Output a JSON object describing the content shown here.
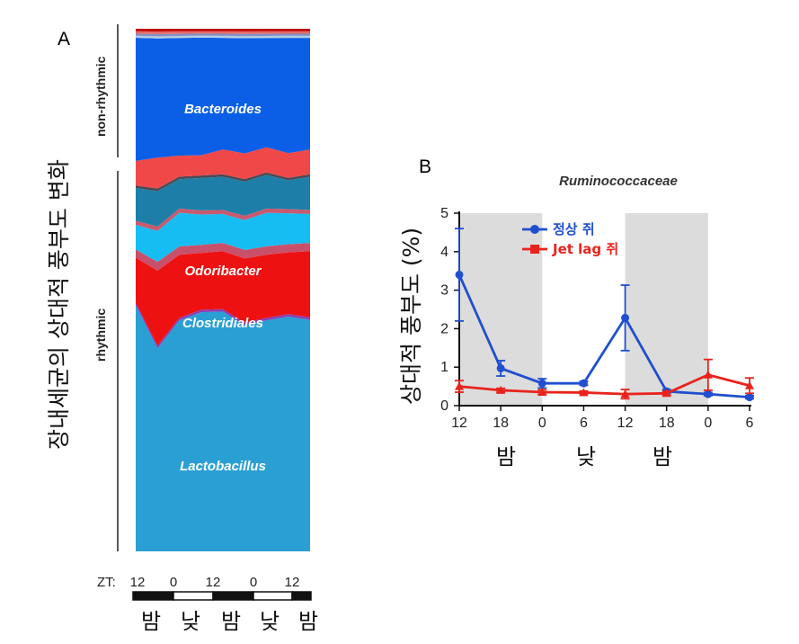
{
  "chart_data": [
    {
      "type": "area",
      "panel": "A",
      "ylabel": "장내세균의 상대적 풍부도 변화",
      "group_labels": {
        "top": "non-rhythmic",
        "bottom": "rhythmic"
      },
      "x_label": "ZT:",
      "x_ticks": [
        "12",
        "0",
        "12",
        "0",
        "12"
      ],
      "light_bar": [
        "dark",
        "light",
        "dark",
        "light",
        "dark"
      ],
      "day_night_labels": [
        "밤",
        "낮",
        "밤",
        "낮",
        "밤"
      ],
      "x": [
        0,
        1,
        2,
        3,
        4,
        5,
        6,
        7,
        8
      ],
      "series": [
        {
          "name": "Lactobacillus",
          "color": "#2a9fd4",
          "values": [
            60,
            46,
            55,
            59,
            58,
            53,
            55,
            57,
            56
          ]
        },
        {
          "color": "#8b3fb0",
          "values": [
            0.6,
            0.6,
            0.6,
            0.6,
            0.6,
            0.6,
            0.6,
            0.6,
            0.6
          ]
        },
        {
          "name": "Clostridiales",
          "color": "#ee1111",
          "values": [
            11,
            17,
            15,
            14,
            14,
            15,
            15,
            15,
            16
          ]
        },
        {
          "color": "#c9506a",
          "values": [
            2,
            2,
            2,
            2,
            2,
            2,
            2,
            2,
            2
          ]
        },
        {
          "name": "Odoribacter",
          "color": "#16bdf2",
          "values": [
            6,
            7,
            8,
            7.5,
            7,
            7,
            8,
            7.5,
            7
          ]
        },
        {
          "color": "#c95a6e",
          "values": [
            1,
            1,
            1,
            1,
            1,
            1,
            1,
            1,
            1
          ]
        },
        {
          "color": "#1d7fa8",
          "values": [
            8,
            8,
            7,
            8,
            8,
            8,
            8,
            7,
            8
          ]
        },
        {
          "color": "#4a4a55",
          "values": [
            0.6,
            0.6,
            0.6,
            0.6,
            0.6,
            0.6,
            0.6,
            0.6,
            0.6
          ]
        },
        {
          "color": "#f04848",
          "values": [
            6,
            7,
            5,
            5,
            6,
            6,
            6,
            6,
            6
          ]
        },
        {
          "name": "Bacteroides",
          "color": "#0a5fe6",
          "values": [
            30,
            27,
            28,
            29,
            27,
            27,
            26,
            28,
            27
          ]
        },
        {
          "color": "#b4cbe3",
          "values": [
            0.5,
            0.5,
            0.5,
            0.5,
            0.5,
            0.5,
            0.5,
            0.5,
            0.5
          ]
        },
        {
          "color": "#7d91c4",
          "values": [
            0.5,
            0.5,
            0.5,
            0.5,
            0.5,
            0.5,
            0.5,
            0.5,
            0.5
          ]
        },
        {
          "color": "#e26a6a",
          "values": [
            0.6,
            0.6,
            0.6,
            0.6,
            0.6,
            0.6,
            0.6,
            0.6,
            0.6
          ]
        },
        {
          "color": "#c40000",
          "values": [
            0.6,
            0.6,
            0.6,
            0.6,
            0.6,
            0.6,
            0.6,
            0.6,
            0.6
          ]
        }
      ]
    },
    {
      "type": "line",
      "panel": "B",
      "title": "Ruminococcaceae",
      "ylabel": "상대적 풍부도 (%)",
      "ylim": [
        0,
        5
      ],
      "y_ticks": [
        0,
        1,
        2,
        3,
        4,
        5
      ],
      "x_ticks": [
        "12",
        "18",
        "0",
        "6",
        "12",
        "18",
        "0",
        "6"
      ],
      "day_night_labels": [
        "밤",
        "낮",
        "밤"
      ],
      "shaded_dark_periods": [
        [
          0,
          2
        ],
        [
          4,
          6
        ]
      ],
      "series": [
        {
          "name": "정상 쥐",
          "color": "#1f4fd0",
          "marker": "circle",
          "values": [
            3.4,
            0.97,
            0.58,
            0.58,
            2.28,
            0.37,
            0.3,
            0.22
          ],
          "errors": [
            1.2,
            0.2,
            0.12,
            0.05,
            0.85,
            0.05,
            0.04,
            0.04
          ]
        },
        {
          "name": "Jet lag 쥐",
          "color": "#e8231c",
          "marker": "triangle",
          "values": [
            0.5,
            0.4,
            0.35,
            0.34,
            0.3,
            0.32,
            0.8,
            0.52
          ],
          "errors": [
            0.15,
            0.05,
            0.06,
            0.04,
            0.12,
            0.05,
            0.4,
            0.2
          ]
        }
      ]
    }
  ],
  "panels": {
    "a_letter": "A",
    "b_letter": "B"
  }
}
